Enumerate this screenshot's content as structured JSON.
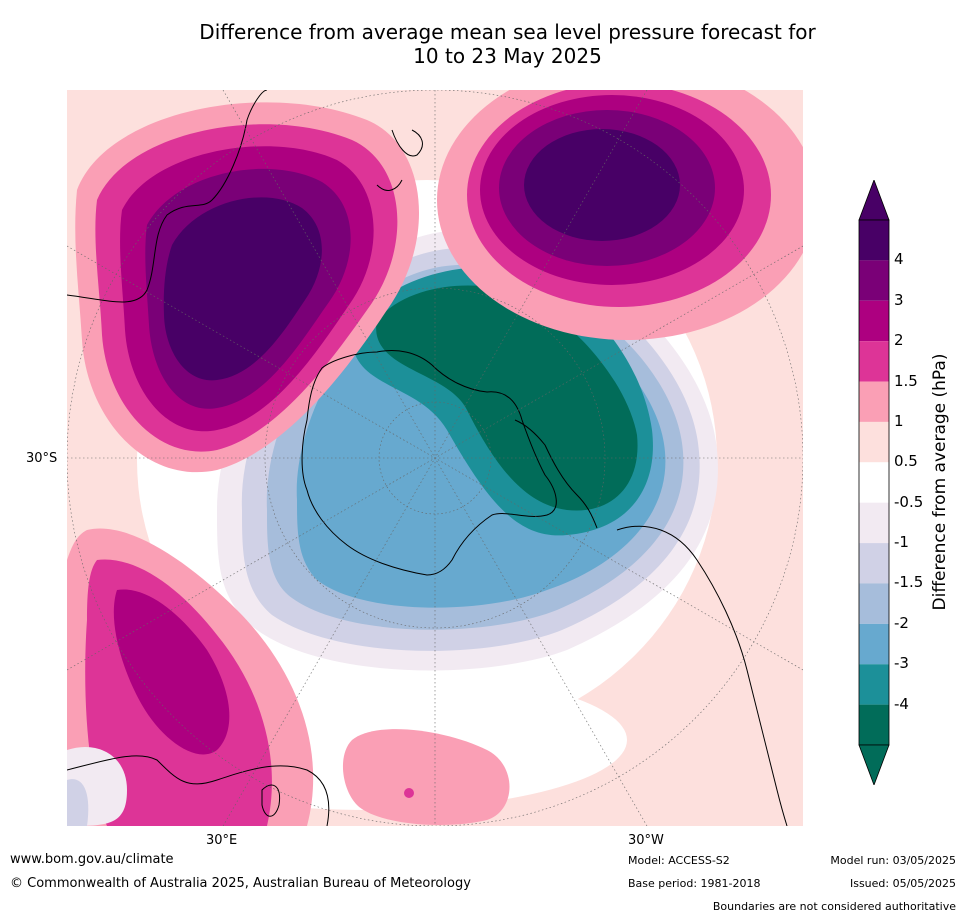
{
  "title_line1": "Difference from average mean sea level pressure forecast for",
  "title_line2": "10 to 23 May 2025",
  "map": {
    "projection": "south-polar-stereographic",
    "lat_label": "30°S",
    "lon_labels": [
      "30°E",
      "30°W"
    ],
    "features": [
      "positive-anomaly-australia",
      "positive-anomaly-south-pacific",
      "positive-anomaly-south-atlantic",
      "negative-anomaly-antarctica"
    ]
  },
  "colorbar": {
    "title": "Difference from average (hPa)",
    "labels": [
      "4",
      "3",
      "2",
      "1.5",
      "1",
      "0.5",
      "-0.5",
      "-1",
      "-1.5",
      "-2",
      "-3",
      "-4"
    ],
    "colors_top_to_bottom": [
      "#480066",
      "#7a0077",
      "#ad0080",
      "#dd3497",
      "#fa9fb5",
      "#fde0dd",
      "#ffffff",
      "#f2eaf2",
      "#d0d1e6",
      "#a6bddb",
      "#67a9cf",
      "#1c9099",
      "#016c59"
    ],
    "over_color": "#480066",
    "under_color": "#016c59"
  },
  "footer": {
    "website": "www.bom.gov.au/climate",
    "copyright": "© Commonwealth of Australia 2025, Australian Bureau of Meteorology",
    "model": "Model: ACCESS-S2",
    "base_period": "Base period: 1981-2018",
    "model_run": "Model run: 03/05/2025",
    "issued": "Issued: 05/05/2025",
    "disclaimer": "Boundaries are not considered authoritative"
  }
}
